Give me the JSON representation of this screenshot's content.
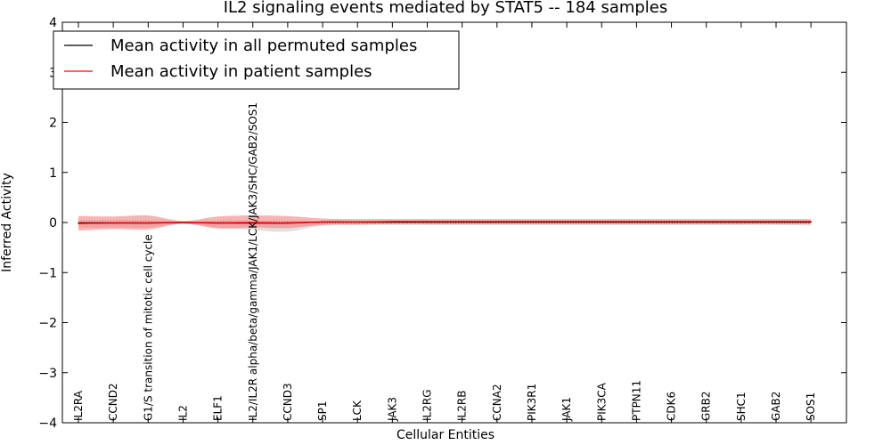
{
  "chart_data": {
    "type": "line",
    "title": "IL2 signaling events mediated by STAT5 -- 184 samples",
    "xlabel": "Cellular Entities",
    "ylabel": "Inferred Activity",
    "ylim": [
      -4,
      4
    ],
    "yticks": [
      4,
      3,
      2,
      1,
      0,
      -1,
      -2,
      -3,
      -4
    ],
    "ytick_labels": [
      "4",
      "3",
      "2",
      "1",
      "0",
      "−1",
      "−2",
      "−3",
      "−4"
    ],
    "categories": [
      "IL2RA",
      "CCND2",
      "G1/S transition of mitotic cell cycle",
      "IL2",
      "ELF1",
      "IL2/IL2R alpha/beta/gamma/JAK1/LCK/JAK3/SHC/GAB2/SOS1",
      "CCND3",
      "SP1",
      "LCK",
      "JAK3",
      "IL2RG",
      "IL2RB",
      "CCNA2",
      "PIK3R1",
      "JAK1",
      "PIK3CA",
      "PTPN11",
      "CDK6",
      "GRB2",
      "SHC1",
      "GAB2",
      "SOS1"
    ],
    "category_labels": [
      "IL2RA",
      "CCND2",
      "G1/S transition of mitotic cell cycle",
      "IL2",
      "ELF1",
      "IL2/IL2R alpha/beta/gamma/JAK1/LCK/JAK3/SHC/GAB2/SOS1",
      "CCND3",
      "SP1",
      "LCK",
      "JAK3",
      "IL2RG",
      "IL2RB",
      "CCNA2",
      "PIK3R1",
      "JAK1",
      "PIK3CA",
      "PTPN11",
      "CDK6",
      "GRB2",
      "SHC1",
      "GAB2",
      "SOS1"
    ],
    "legend": {
      "placement": "top-left",
      "entries": [
        {
          "label": "Mean activity in all permuted samples",
          "color": "#000000"
        },
        {
          "label": "Mean activity in patient samples",
          "color": "#ff0000"
        }
      ]
    },
    "series": [
      {
        "name": "Mean activity in all permuted samples",
        "color": "#000000",
        "values": [
          -0.01,
          -0.01,
          -0.01,
          0.0,
          -0.01,
          -0.01,
          -0.01,
          0.01,
          0.01,
          0.01,
          0.01,
          0.01,
          0.01,
          0.01,
          0.01,
          0.01,
          0.01,
          0.01,
          0.01,
          0.01,
          0.01,
          0.01
        ],
        "upper": [
          0.05,
          0.05,
          0.05,
          0.02,
          0.04,
          0.04,
          0.04,
          0.03,
          0.03,
          0.03,
          0.03,
          0.03,
          0.03,
          0.03,
          0.03,
          0.03,
          0.03,
          0.03,
          0.03,
          0.03,
          0.03,
          0.03
        ],
        "lower": [
          -0.1,
          -0.1,
          -0.1,
          -0.03,
          -0.1,
          -0.15,
          -0.18,
          -0.06,
          -0.05,
          -0.05,
          -0.05,
          -0.05,
          -0.05,
          -0.05,
          -0.05,
          -0.05,
          -0.05,
          -0.05,
          -0.05,
          -0.05,
          -0.05,
          -0.06
        ],
        "band_color": "#bbbbbb"
      },
      {
        "name": "Mean activity in patient samples",
        "color": "#ff0000",
        "values": [
          -0.02,
          -0.01,
          -0.01,
          0.0,
          -0.01,
          0.0,
          -0.01,
          0.01,
          0.01,
          0.02,
          0.02,
          0.02,
          0.02,
          0.02,
          0.02,
          0.02,
          0.02,
          0.02,
          0.02,
          0.02,
          0.02,
          0.02
        ],
        "upper": [
          0.13,
          0.12,
          0.14,
          0.03,
          0.12,
          0.14,
          0.13,
          0.08,
          0.07,
          0.07,
          0.07,
          0.07,
          0.07,
          0.07,
          0.07,
          0.07,
          0.07,
          0.07,
          0.07,
          0.07,
          0.07,
          0.07
        ],
        "lower": [
          -0.16,
          -0.13,
          -0.14,
          -0.02,
          -0.12,
          -0.1,
          -0.11,
          -0.05,
          -0.04,
          -0.03,
          -0.03,
          -0.03,
          -0.03,
          -0.03,
          -0.03,
          -0.03,
          -0.03,
          -0.03,
          -0.03,
          -0.03,
          -0.03,
          -0.03
        ],
        "band_color": "#ff6666"
      }
    ],
    "baseline": 0
  }
}
